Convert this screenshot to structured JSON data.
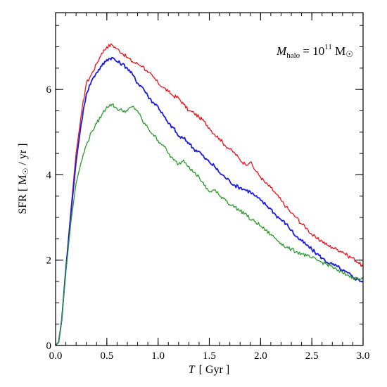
{
  "chart_data": {
    "type": "line",
    "annotation": {
      "base": "M",
      "sub": "halo",
      "eq": " = 10",
      "sup": "11",
      "unit": " M",
      "unit_sym": "☉"
    },
    "xlabel": {
      "var": "T",
      "unit": "[ Gyr ]"
    },
    "ylabel": {
      "text": "SFR  [ M",
      "sym": "☉",
      "tail": " / yr ]"
    },
    "xlim": [
      0,
      3.0
    ],
    "ylim": [
      0,
      7.8
    ],
    "xticks": [
      0,
      0.5,
      1.0,
      1.5,
      2.0,
      2.5,
      3.0
    ],
    "xtick_labels": [
      "0.0",
      "0.5",
      "1.0",
      "1.5",
      "2.0",
      "2.5",
      "3.0"
    ],
    "yticks": [
      0,
      2,
      4,
      6
    ],
    "ytick_labels": [
      "0",
      "2",
      "4",
      "6"
    ],
    "x_minor_step": 0.1,
    "y_minor_step": 0.5,
    "grid": false,
    "series": [
      {
        "color": "#e8141b",
        "points": [
          [
            0,
            0
          ],
          [
            0.03,
            0.08
          ],
          [
            0.06,
            0.6
          ],
          [
            0.1,
            1.8
          ],
          [
            0.15,
            3.2
          ],
          [
            0.2,
            4.5
          ],
          [
            0.25,
            5.4
          ],
          [
            0.3,
            6.15
          ],
          [
            0.35,
            6.35
          ],
          [
            0.4,
            6.6
          ],
          [
            0.45,
            6.85
          ],
          [
            0.5,
            7.0
          ],
          [
            0.55,
            7.05
          ],
          [
            0.6,
            6.95
          ],
          [
            0.65,
            6.85
          ],
          [
            0.7,
            6.75
          ],
          [
            0.75,
            6.65
          ],
          [
            0.8,
            6.6
          ],
          [
            0.85,
            6.55
          ],
          [
            0.9,
            6.4
          ],
          [
            0.95,
            6.3
          ],
          [
            1.0,
            6.15
          ],
          [
            1.05,
            6.05
          ],
          [
            1.1,
            5.95
          ],
          [
            1.15,
            5.85
          ],
          [
            1.2,
            5.8
          ],
          [
            1.25,
            5.65
          ],
          [
            1.3,
            5.5
          ],
          [
            1.35,
            5.45
          ],
          [
            1.4,
            5.35
          ],
          [
            1.45,
            5.25
          ],
          [
            1.5,
            5.1
          ],
          [
            1.55,
            4.95
          ],
          [
            1.6,
            4.85
          ],
          [
            1.65,
            4.7
          ],
          [
            1.7,
            4.6
          ],
          [
            1.75,
            4.5
          ],
          [
            1.8,
            4.35
          ],
          [
            1.85,
            4.25
          ],
          [
            1.9,
            4.3
          ],
          [
            1.95,
            4.1
          ],
          [
            2.0,
            3.95
          ],
          [
            2.05,
            3.8
          ],
          [
            2.1,
            3.7
          ],
          [
            2.15,
            3.55
          ],
          [
            2.2,
            3.4
          ],
          [
            2.25,
            3.25
          ],
          [
            2.3,
            3.1
          ],
          [
            2.35,
            3.0
          ],
          [
            2.4,
            2.85
          ],
          [
            2.45,
            2.75
          ],
          [
            2.5,
            2.6
          ],
          [
            2.55,
            2.5
          ],
          [
            2.6,
            2.45
          ],
          [
            2.65,
            2.35
          ],
          [
            2.7,
            2.3
          ],
          [
            2.75,
            2.25
          ],
          [
            2.8,
            2.2
          ],
          [
            2.85,
            2.1
          ],
          [
            2.9,
            2.05
          ],
          [
            2.95,
            1.95
          ],
          [
            3.0,
            1.85
          ]
        ]
      },
      {
        "color": "#1a1adf",
        "points": [
          [
            0,
            0
          ],
          [
            0.03,
            0.08
          ],
          [
            0.06,
            0.6
          ],
          [
            0.1,
            1.8
          ],
          [
            0.15,
            3.1
          ],
          [
            0.2,
            4.3
          ],
          [
            0.25,
            5.2
          ],
          [
            0.3,
            5.9
          ],
          [
            0.35,
            6.2
          ],
          [
            0.4,
            6.4
          ],
          [
            0.45,
            6.55
          ],
          [
            0.5,
            6.7
          ],
          [
            0.55,
            6.75
          ],
          [
            0.6,
            6.65
          ],
          [
            0.65,
            6.6
          ],
          [
            0.7,
            6.5
          ],
          [
            0.75,
            6.35
          ],
          [
            0.8,
            6.15
          ],
          [
            0.85,
            6.05
          ],
          [
            0.9,
            5.85
          ],
          [
            0.95,
            5.7
          ],
          [
            1.0,
            5.6
          ],
          [
            1.05,
            5.4
          ],
          [
            1.1,
            5.2
          ],
          [
            1.15,
            5.1
          ],
          [
            1.2,
            4.9
          ],
          [
            1.25,
            4.85
          ],
          [
            1.3,
            4.75
          ],
          [
            1.35,
            4.6
          ],
          [
            1.4,
            4.55
          ],
          [
            1.45,
            4.4
          ],
          [
            1.5,
            4.3
          ],
          [
            1.55,
            4.2
          ],
          [
            1.6,
            4.05
          ],
          [
            1.65,
            3.95
          ],
          [
            1.7,
            3.85
          ],
          [
            1.75,
            3.75
          ],
          [
            1.8,
            3.7
          ],
          [
            1.85,
            3.65
          ],
          [
            1.9,
            3.6
          ],
          [
            1.95,
            3.5
          ],
          [
            2.0,
            3.4
          ],
          [
            2.05,
            3.3
          ],
          [
            2.1,
            3.2
          ],
          [
            2.15,
            3.05
          ],
          [
            2.2,
            2.95
          ],
          [
            2.25,
            2.85
          ],
          [
            2.3,
            2.7
          ],
          [
            2.35,
            2.55
          ],
          [
            2.4,
            2.45
          ],
          [
            2.45,
            2.35
          ],
          [
            2.5,
            2.25
          ],
          [
            2.55,
            2.15
          ],
          [
            2.6,
            2.05
          ],
          [
            2.65,
            1.95
          ],
          [
            2.7,
            1.9
          ],
          [
            2.75,
            1.85
          ],
          [
            2.8,
            1.75
          ],
          [
            2.85,
            1.7
          ],
          [
            2.9,
            1.6
          ],
          [
            2.95,
            1.55
          ],
          [
            3.0,
            1.5
          ]
        ]
      },
      {
        "color": "#2a9a2a",
        "points": [
          [
            0,
            0
          ],
          [
            0.03,
            0.08
          ],
          [
            0.06,
            0.6
          ],
          [
            0.1,
            1.7
          ],
          [
            0.15,
            2.9
          ],
          [
            0.2,
            3.8
          ],
          [
            0.25,
            4.3
          ],
          [
            0.3,
            4.7
          ],
          [
            0.35,
            5.0
          ],
          [
            0.4,
            5.2
          ],
          [
            0.45,
            5.4
          ],
          [
            0.5,
            5.6
          ],
          [
            0.55,
            5.65
          ],
          [
            0.6,
            5.55
          ],
          [
            0.65,
            5.5
          ],
          [
            0.7,
            5.5
          ],
          [
            0.75,
            5.6
          ],
          [
            0.8,
            5.5
          ],
          [
            0.85,
            5.25
          ],
          [
            0.9,
            5.1
          ],
          [
            0.95,
            4.95
          ],
          [
            1.0,
            4.8
          ],
          [
            1.05,
            4.7
          ],
          [
            1.1,
            4.5
          ],
          [
            1.15,
            4.35
          ],
          [
            1.2,
            4.25
          ],
          [
            1.25,
            4.35
          ],
          [
            1.3,
            4.2
          ],
          [
            1.35,
            4.05
          ],
          [
            1.4,
            3.95
          ],
          [
            1.45,
            3.75
          ],
          [
            1.5,
            3.6
          ],
          [
            1.55,
            3.65
          ],
          [
            1.6,
            3.5
          ],
          [
            1.65,
            3.45
          ],
          [
            1.7,
            3.3
          ],
          [
            1.75,
            3.25
          ],
          [
            1.8,
            3.15
          ],
          [
            1.85,
            3.1
          ],
          [
            1.9,
            2.95
          ],
          [
            1.95,
            2.9
          ],
          [
            2.0,
            2.8
          ],
          [
            2.05,
            2.7
          ],
          [
            2.1,
            2.6
          ],
          [
            2.15,
            2.5
          ],
          [
            2.2,
            2.4
          ],
          [
            2.25,
            2.3
          ],
          [
            2.3,
            2.25
          ],
          [
            2.35,
            2.2
          ],
          [
            2.4,
            2.15
          ],
          [
            2.45,
            2.1
          ],
          [
            2.5,
            2.05
          ],
          [
            2.55,
            2.0
          ],
          [
            2.6,
            1.95
          ],
          [
            2.65,
            1.9
          ],
          [
            2.7,
            1.85
          ],
          [
            2.75,
            1.75
          ],
          [
            2.8,
            1.7
          ],
          [
            2.85,
            1.65
          ],
          [
            2.9,
            1.6
          ],
          [
            2.95,
            1.55
          ],
          [
            3.0,
            1.55
          ]
        ]
      }
    ]
  }
}
